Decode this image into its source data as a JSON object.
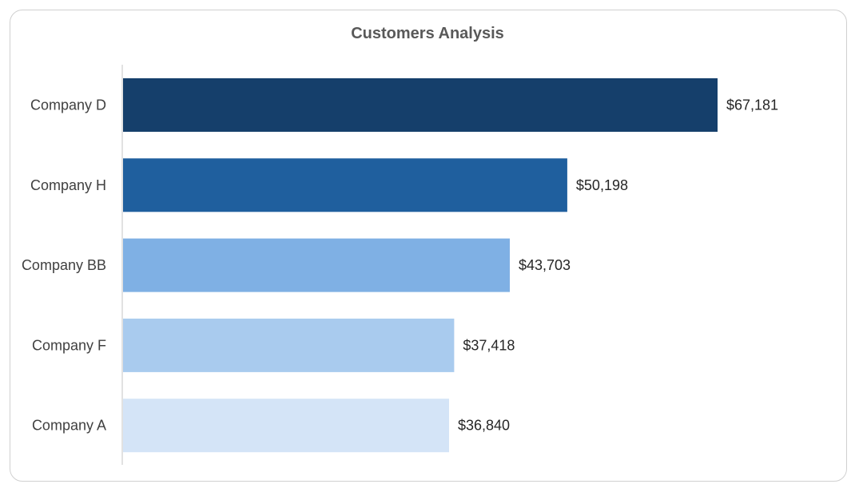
{
  "chart_data": {
    "type": "bar",
    "orientation": "horizontal",
    "title": "Customers Analysis",
    "xlabel": "",
    "ylabel": "",
    "categories": [
      "Company D",
      "Company H",
      "Company BB",
      "Company F",
      "Company A"
    ],
    "values": [
      67181,
      50198,
      43703,
      37418,
      36840
    ],
    "value_labels": [
      "$67,181",
      "$50,198",
      "$43,703",
      "$37,418",
      "$36,840"
    ],
    "bar_colors": [
      "#153f6b",
      "#1f5f9e",
      "#7fb0e4",
      "#a9cbee",
      "#d4e4f7"
    ],
    "xlim": [
      0,
      67181
    ],
    "grid": false,
    "legend": "none"
  }
}
